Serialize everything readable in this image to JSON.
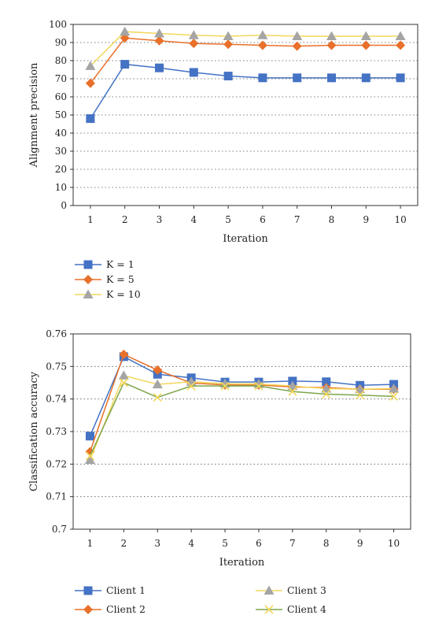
{
  "colors": {
    "blue": "#4472C4",
    "orange": "#E8702A",
    "gray": "#A5A5A5",
    "yellow": "#F2D75C",
    "green": "#7FA64A",
    "grid": "#555555",
    "axis": "#333333"
  },
  "chart_data": [
    {
      "type": "line",
      "xlabel": "Iteration",
      "ylabel": "Alignment precision",
      "x": [
        1,
        2,
        3,
        4,
        5,
        6,
        7,
        8,
        9,
        10
      ],
      "yticks": [
        "0",
        "10",
        "20",
        "30",
        "40",
        "50",
        "60",
        "70",
        "80",
        "90",
        "100"
      ],
      "ylim": [
        0,
        100
      ],
      "grid": true,
      "legend_position": "bottom-left",
      "series": [
        {
          "name": "K = 1",
          "color": "#4472C4",
          "lineColor": "#4472C4",
          "marker": "square",
          "values": [
            48,
            78,
            76,
            73.5,
            71.5,
            70.5,
            70.5,
            70.5,
            70.5,
            70.5
          ]
        },
        {
          "name": "K = 5",
          "color": "#E8702A",
          "lineColor": "#E8702A",
          "marker": "diamond",
          "values": [
            67.5,
            92.5,
            91,
            89.5,
            89,
            88.5,
            88,
            88.5,
            88.5,
            88.5
          ]
        },
        {
          "name": "K = 10",
          "color": "#A5A5A5",
          "lineColor": "#F2D75C",
          "marker": "triangle",
          "values": [
            77,
            96,
            95,
            94,
            93.5,
            94,
            93.5,
            93.5,
            93.5,
            93.5
          ]
        }
      ]
    },
    {
      "type": "line",
      "xlabel": "Iteration",
      "ylabel": "Classification accuracy",
      "x": [
        1,
        2,
        3,
        4,
        5,
        6,
        7,
        8,
        9,
        10
      ],
      "yticks": [
        "0.7",
        "0.71",
        "0.72",
        "0.73",
        "0.74",
        "0.75",
        "0.76"
      ],
      "ylim": [
        0.7,
        0.76
      ],
      "grid": true,
      "legend_position": "bottom-left",
      "series": [
        {
          "name": "Client 1",
          "color": "#4472C4",
          "lineColor": "#4472C4",
          "marker": "square",
          "values": [
            0.7286,
            0.753,
            0.7476,
            0.7465,
            0.7452,
            0.7452,
            0.7455,
            0.7453,
            0.7442,
            0.7445
          ]
        },
        {
          "name": "Client 2",
          "color": "#E8702A",
          "lineColor": "#E8702A",
          "marker": "diamond",
          "values": [
            0.7238,
            0.7537,
            0.7489,
            0.7449,
            0.7443,
            0.7443,
            0.7437,
            0.7435,
            0.743,
            0.743
          ]
        },
        {
          "name": "Client 3",
          "color": "#A5A5A5",
          "lineColor": "#F2D75C",
          "marker": "triangle",
          "values": [
            0.7213,
            0.7472,
            0.7445,
            0.7453,
            0.7447,
            0.7446,
            0.744,
            0.7432,
            0.743,
            0.7432
          ]
        },
        {
          "name": "Client 4",
          "color": "#F2D75C",
          "lineColor": "#7FA64A",
          "marker": "x",
          "values": [
            0.7225,
            0.745,
            0.7405,
            0.744,
            0.744,
            0.744,
            0.7423,
            0.7415,
            0.7412,
            0.7408
          ]
        }
      ]
    }
  ]
}
